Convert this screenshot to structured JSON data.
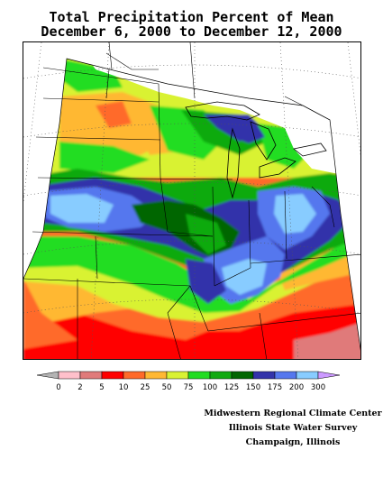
{
  "title": {
    "line1": "Total Precipitation Percent of Mean",
    "line2": "December 6, 2000 to December 12, 2000"
  },
  "legend": {
    "tick_labels": [
      "0",
      "2",
      "5",
      "10",
      "25",
      "50",
      "75",
      "100",
      "125",
      "150",
      "175",
      "200",
      "300"
    ],
    "colors": [
      "#b3b3b3",
      "#ffc0cb",
      "#e07a7a",
      "#ff0000",
      "#ff6a2a",
      "#ffb833",
      "#d9f233",
      "#22dd22",
      "#11aa11",
      "#006600",
      "#3333aa",
      "#5577ee",
      "#88ccff",
      "#cc99ff"
    ]
  },
  "credits": {
    "line1": "Midwestern Regional Climate Center",
    "line2": "Illinois State Water Survey",
    "line3": "Champaign, Illinois"
  }
}
